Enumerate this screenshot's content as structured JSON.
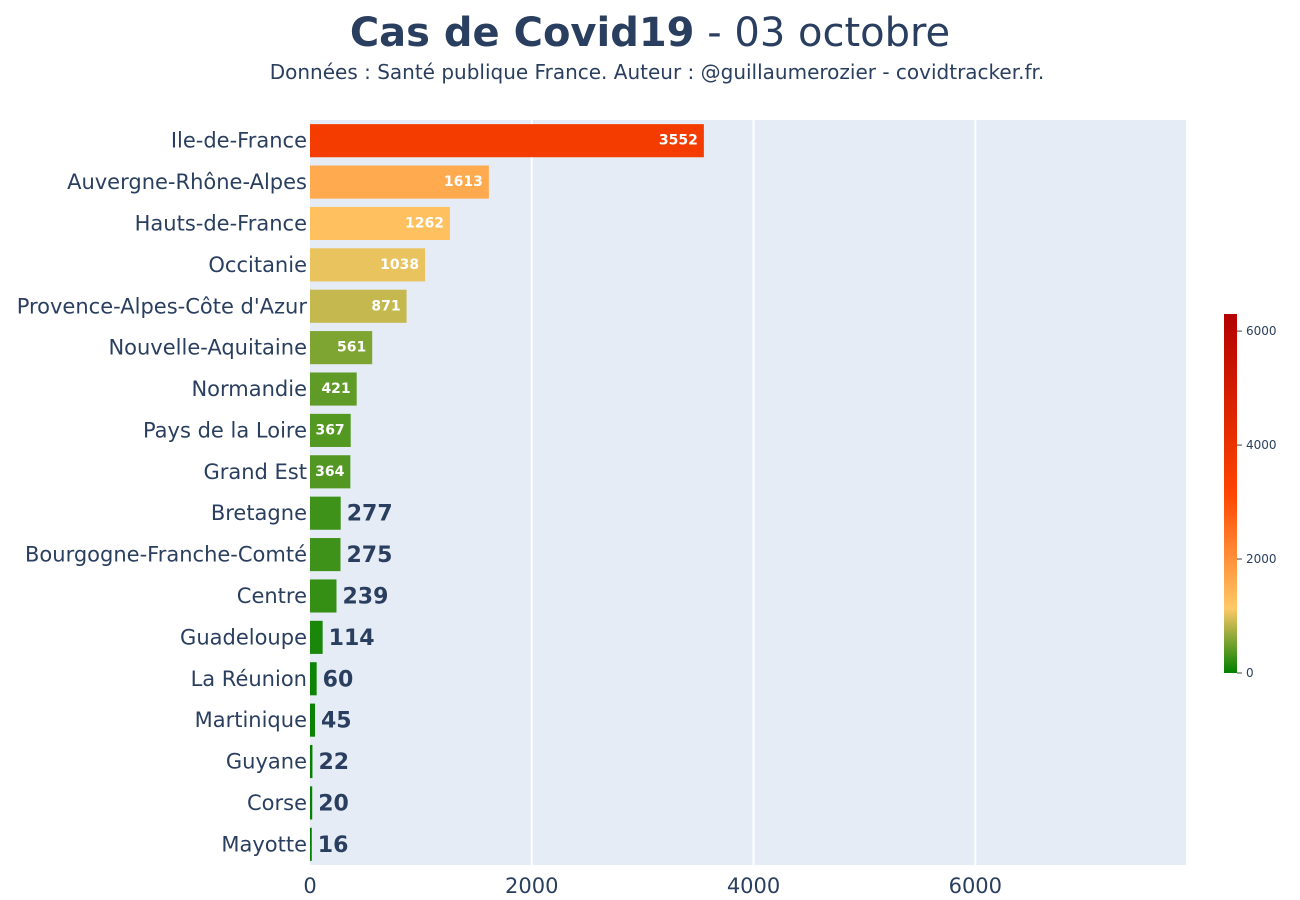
{
  "chart_data": {
    "type": "bar",
    "orientation": "horizontal",
    "title_bold": "Cas de Covid19",
    "title_rest": " - 03 octobre",
    "subtitle": "Données : Santé publique France. Auteur : @guillaumerozier - covidtracker.fr.",
    "categories": [
      "Ile-de-France",
      "Auvergne-Rhône-Alpes",
      "Hauts-de-France",
      "Occitanie",
      "Provence-Alpes-Côte d'Azur",
      "Nouvelle-Aquitaine",
      "Normandie",
      "Pays de la Loire",
      "Grand Est",
      "Bretagne",
      "Bourgogne-Franche-Comté",
      "Centre",
      "Guadeloupe",
      "La Réunion",
      "Martinique",
      "Guyane",
      "Corse",
      "Mayotte"
    ],
    "values": [
      3552,
      1613,
      1262,
      1038,
      871,
      561,
      421,
      367,
      364,
      277,
      275,
      239,
      114,
      60,
      45,
      22,
      20,
      16
    ],
    "xlim": [
      0,
      7900
    ],
    "xticks": [
      0,
      2000,
      4000,
      6000
    ],
    "colorscale": {
      "min": 0,
      "max": 6300,
      "ticks": [
        0,
        2000,
        4000,
        6000
      ],
      "stops": [
        {
          "t": 0.0,
          "color": "#008000"
        },
        {
          "t": 0.18,
          "color": "#ffc966"
        },
        {
          "t": 0.5,
          "color": "#ff4500"
        },
        {
          "t": 1.0,
          "color": "#b30000"
        }
      ]
    },
    "colors": {
      "plot_bg": "#e5ecf6",
      "grid": "#ffffff",
      "text": "#2a3f5f"
    },
    "grid": true,
    "legend": "colorbar-right"
  }
}
